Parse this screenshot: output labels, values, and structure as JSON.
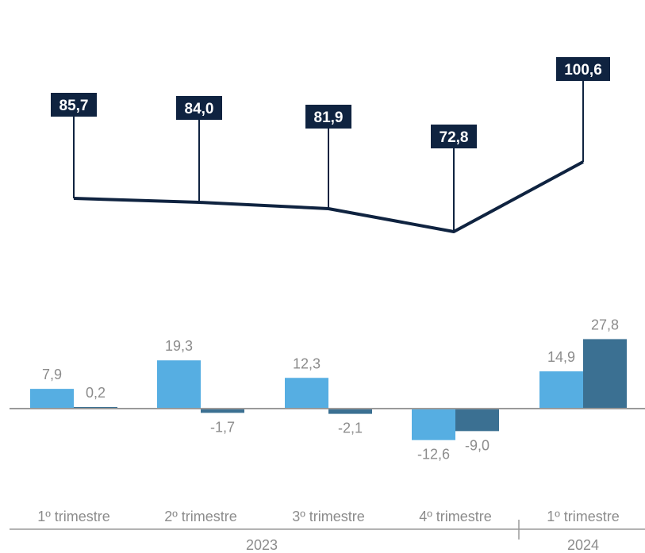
{
  "chart_data": [
    {
      "type": "line",
      "categories": [
        "1º trimestre",
        "2º trimestre",
        "3º trimestre",
        "4º trimestre",
        "1º trimestre"
      ],
      "values": [
        85.7,
        84.0,
        81.9,
        72.8,
        100.6
      ],
      "value_labels": [
        "85,7",
        "84,0",
        "81,9",
        "72,8",
        "100,6"
      ],
      "colors": {
        "line": "#0f2340",
        "label_bg": "#0f2340",
        "label_text": "#ffffff"
      }
    },
    {
      "type": "bar",
      "categories": [
        "1º trimestre",
        "2º trimestre",
        "3º trimestre",
        "4º trimestre",
        "1º trimestre"
      ],
      "series": [
        {
          "values": [
            7.9,
            19.3,
            12.3,
            -12.6,
            14.9
          ],
          "labels": [
            "7,9",
            "19,3",
            "12,3",
            "-12,6",
            "14,9"
          ],
          "color": "#56aee2"
        },
        {
          "values": [
            0.2,
            -1.7,
            -2.1,
            -9.0,
            27.8
          ],
          "labels": [
            "0,2",
            "-1,7",
            "-2,1",
            "-9,0",
            "27,8"
          ],
          "color": "#3b7092"
        }
      ],
      "years": [
        {
          "label": "2023",
          "span": [
            0,
            3
          ]
        },
        {
          "label": "2024",
          "span": [
            4,
            4
          ]
        }
      ],
      "colors": {
        "baseline": "#9a9a9a",
        "text": "#8c8c8c"
      }
    }
  ]
}
